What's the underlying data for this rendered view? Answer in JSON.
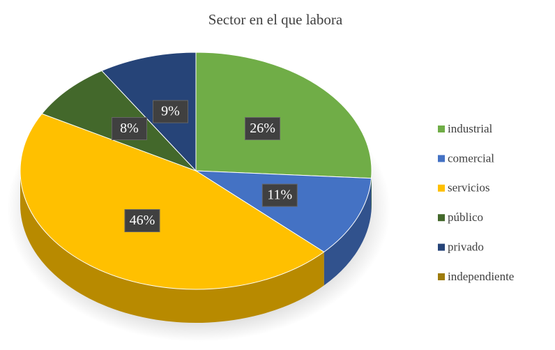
{
  "chart_data": {
    "type": "pie",
    "title": "Sector en el que labora",
    "categories": [
      "industrial",
      "comercial",
      "servicios",
      "público",
      "privado",
      "independiente"
    ],
    "values": [
      26,
      11,
      46,
      8,
      9,
      0
    ],
    "value_labels": [
      "26%",
      "11%",
      "46%",
      "8%",
      "9%",
      null
    ],
    "colors": [
      "#70ad47",
      "#4472c4",
      "#ffc000",
      "#43682b",
      "#264478",
      "#9e7c0c"
    ],
    "legend": "right"
  }
}
